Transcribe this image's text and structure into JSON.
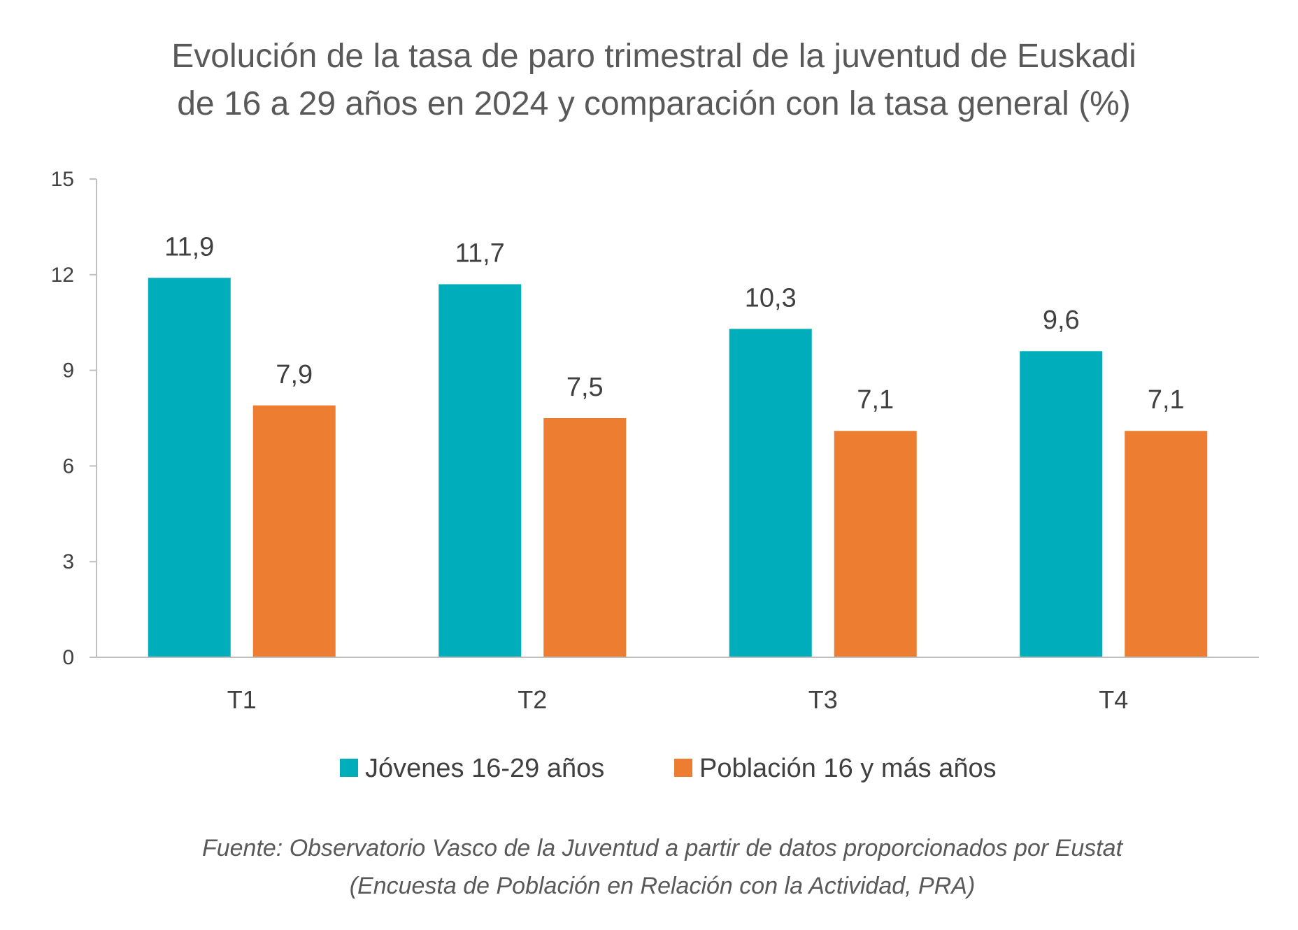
{
  "chart_data": {
    "type": "bar",
    "title": [
      "Evolución de la tasa de paro trimestral de la juventud de Euskadi",
      "de 16 a 29 años en 2024 y comparación con la tasa general (%)"
    ],
    "categories": [
      "T1",
      "T2",
      "T3",
      "T4"
    ],
    "series": [
      {
        "name": "Jóvenes 16-29 años",
        "color": "#00AEBB",
        "values": [
          11.9,
          11.7,
          10.3,
          9.6
        ],
        "labels": [
          "11,9",
          "11,7",
          "10,3",
          "9,6"
        ]
      },
      {
        "name": "Población 16 y más años",
        "color": "#ED7D31",
        "values": [
          7.9,
          7.5,
          7.1,
          7.1
        ],
        "labels": [
          "7,9",
          "7,5",
          "7,1",
          "7,1"
        ]
      }
    ],
    "ylim": [
      0,
      15
    ],
    "yticks": [
      0,
      3,
      6,
      9,
      12,
      15
    ],
    "ytick_labels": [
      "0",
      "3",
      "6",
      "9",
      "12",
      "15"
    ],
    "xlabel": "",
    "ylabel": "",
    "grid": false,
    "legend_position": "bottom",
    "source": [
      "Fuente: Observatorio Vasco de la Juventud a partir de datos proporcionados por Eustat",
      "(Encuesta de Población en Relación con la Actividad, PRA)"
    ]
  }
}
